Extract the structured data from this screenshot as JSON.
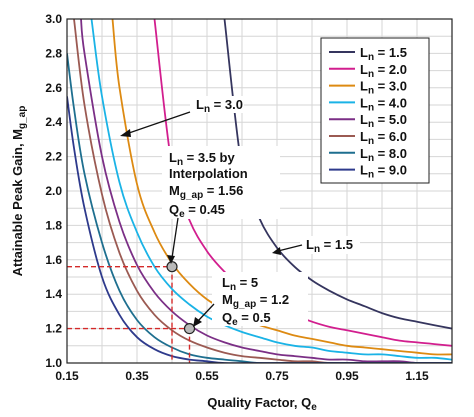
{
  "chart_data": {
    "type": "line",
    "xlabel": "Quality Factor, Q",
    "xlabel_sub": "e",
    "ylabel": "Attainable Peak Gain, M",
    "ylabel_sub": "g_ap",
    "xlim": [
      0.15,
      1.25
    ],
    "ylim": [
      1.0,
      3.0
    ],
    "xticks": [
      "0.15",
      "0.35",
      "0.55",
      "0.75",
      "0.95",
      "1.15"
    ],
    "yticks": [
      "1.0",
      "1.2",
      "1.4",
      "1.6",
      "1.8",
      "2.0",
      "2.2",
      "2.4",
      "2.6",
      "2.8",
      "3.0"
    ],
    "grid": true,
    "legend_position": "top-right",
    "series": [
      {
        "name": "L_n = 1.5",
        "label_main": "L",
        "label_sub": "n",
        "label_rest": " = 1.5",
        "color": "#35355e",
        "x": [
          0.6,
          0.65,
          0.7,
          0.75,
          0.8,
          0.85,
          0.9,
          0.95,
          1.0,
          1.05,
          1.1,
          1.15,
          1.2,
          1.25
        ],
        "y": [
          3.0,
          2.13,
          1.84,
          1.67,
          1.56,
          1.48,
          1.42,
          1.37,
          1.33,
          1.29,
          1.26,
          1.24,
          1.22,
          1.2
        ]
      },
      {
        "name": "L_n = 2.0",
        "label_main": "L",
        "label_sub": "n",
        "label_rest": " = 2.0",
        "color": "#d21e8e",
        "x": [
          0.4,
          0.45,
          0.5,
          0.55,
          0.6,
          0.65,
          0.7,
          0.75,
          0.8,
          0.85,
          0.9,
          0.95,
          1.0,
          1.05,
          1.1,
          1.15,
          1.2,
          1.25
        ],
        "y": [
          3.0,
          2.14,
          1.83,
          1.65,
          1.53,
          1.44,
          1.37,
          1.32,
          1.28,
          1.24,
          1.21,
          1.19,
          1.17,
          1.15,
          1.13,
          1.12,
          1.11,
          1.1
        ]
      },
      {
        "name": "L_n = 3.0",
        "label_main": "L",
        "label_sub": "n",
        "label_rest": " = 3.0",
        "color": "#dd8a12",
        "x": [
          0.28,
          0.3,
          0.35,
          0.4,
          0.45,
          0.5,
          0.55,
          0.6,
          0.65,
          0.7,
          0.75,
          0.8,
          0.85,
          0.9,
          0.95,
          1.0,
          1.05,
          1.1,
          1.15,
          1.2,
          1.25
        ],
        "y": [
          3.0,
          2.6,
          2.04,
          1.76,
          1.58,
          1.46,
          1.37,
          1.31,
          1.26,
          1.22,
          1.19,
          1.16,
          1.14,
          1.12,
          1.1,
          1.09,
          1.08,
          1.07,
          1.06,
          1.05,
          1.05
        ]
      },
      {
        "name": "L_n = 4.0",
        "label_main": "L",
        "label_sub": "n",
        "label_rest": " = 4.0",
        "color": "#1ab3e6",
        "x": [
          0.22,
          0.25,
          0.3,
          0.35,
          0.4,
          0.45,
          0.5,
          0.55,
          0.6,
          0.65,
          0.7,
          0.75,
          0.8,
          0.85,
          0.9,
          0.95,
          1.0,
          1.05,
          1.1,
          1.15,
          1.2,
          1.25
        ],
        "y": [
          3.0,
          2.55,
          2.05,
          1.76,
          1.56,
          1.43,
          1.34,
          1.27,
          1.22,
          1.18,
          1.15,
          1.12,
          1.1,
          1.09,
          1.07,
          1.06,
          1.05,
          1.05,
          1.04,
          1.03,
          1.03,
          1.02
        ]
      },
      {
        "name": "L_n = 5.0",
        "label_main": "L",
        "label_sub": "n",
        "label_rest": " = 5.0",
        "color": "#7b2f86",
        "x": [
          0.19,
          0.2,
          0.25,
          0.3,
          0.35,
          0.4,
          0.45,
          0.5,
          0.55,
          0.6,
          0.65,
          0.7,
          0.75,
          0.8,
          0.85,
          0.9,
          0.95,
          1.0,
          1.05,
          1.1,
          1.15,
          1.2,
          1.25
        ],
        "y": [
          3.0,
          2.8,
          2.2,
          1.82,
          1.57,
          1.41,
          1.3,
          1.22,
          1.16,
          1.12,
          1.09,
          1.07,
          1.05,
          1.04,
          1.03,
          1.02,
          1.02,
          1.01,
          1.01,
          1.01,
          1.0,
          1.0,
          1.0
        ]
      },
      {
        "name": "L_n = 6.0",
        "label_main": "L",
        "label_sub": "n",
        "label_rest": " = 6.0",
        "color": "#9b5a52",
        "x": [
          0.17,
          0.2,
          0.25,
          0.3,
          0.35,
          0.4,
          0.45,
          0.5,
          0.55,
          0.6,
          0.65,
          0.7,
          0.75,
          0.8,
          0.85,
          0.9,
          1.0,
          1.1,
          1.25
        ],
        "y": [
          3.0,
          2.5,
          1.98,
          1.64,
          1.42,
          1.28,
          1.19,
          1.13,
          1.09,
          1.06,
          1.04,
          1.03,
          1.02,
          1.01,
          1.01,
          1.0,
          1.0,
          1.0,
          1.0
        ]
      },
      {
        "name": "L_n = 8.0",
        "label_main": "L",
        "label_sub": "n",
        "label_rest": " = 8.0",
        "color": "#1e6f8f",
        "x": [
          0.15,
          0.17,
          0.2,
          0.25,
          0.3,
          0.35,
          0.4,
          0.45,
          0.5,
          0.55,
          0.6,
          0.65,
          0.7,
          0.8,
          0.9,
          1.0,
          1.25
        ],
        "y": [
          2.8,
          2.48,
          2.1,
          1.7,
          1.42,
          1.25,
          1.15,
          1.09,
          1.05,
          1.03,
          1.02,
          1.01,
          1.0,
          1.0,
          1.0,
          1.0,
          1.0
        ]
      },
      {
        "name": "L_n = 9.0",
        "label_main": "L",
        "label_sub": "n",
        "label_rest": " = 9.0",
        "color": "#2e3a8c",
        "x": [
          0.15,
          0.17,
          0.2,
          0.25,
          0.3,
          0.35,
          0.4,
          0.45,
          0.5,
          0.55,
          0.6,
          0.7,
          0.8,
          1.0,
          1.25
        ],
        "y": [
          2.55,
          2.25,
          1.9,
          1.5,
          1.28,
          1.15,
          1.08,
          1.04,
          1.02,
          1.01,
          1.0,
          1.0,
          1.0,
          1.0,
          1.0
        ]
      }
    ],
    "points": [
      {
        "x": 0.45,
        "y": 1.56,
        "fill": "#b9b9b9"
      },
      {
        "x": 0.5,
        "y": 1.2,
        "fill": "#b9b9b9"
      }
    ],
    "ref_line_color": "#d42a2a",
    "annotations": {
      "a1": {
        "main": "L",
        "sub": "n",
        "rest": " = 3.0"
      },
      "a2": {
        "line1_main": "L",
        "line1_sub": "n",
        "line1_rest": " = 3.5 by",
        "line2": "Interpolation",
        "line3_main": "M",
        "line3_sub": "g_ap",
        "line3_rest": " = 1.56",
        "line4_main": "Q",
        "line4_sub": "e",
        "line4_rest": " = 0.45"
      },
      "a3": {
        "main": "L",
        "sub": "n",
        "rest": " = 1.5"
      },
      "a4": {
        "line1_main": "L",
        "line1_sub": "n",
        "line1_rest": " = 5",
        "line2_main": "M",
        "line2_sub": "g_ap",
        "line2_rest": " = 1.2",
        "line3_main": "Q",
        "line3_sub": "e",
        "line3_rest": " = 0.5"
      }
    }
  }
}
